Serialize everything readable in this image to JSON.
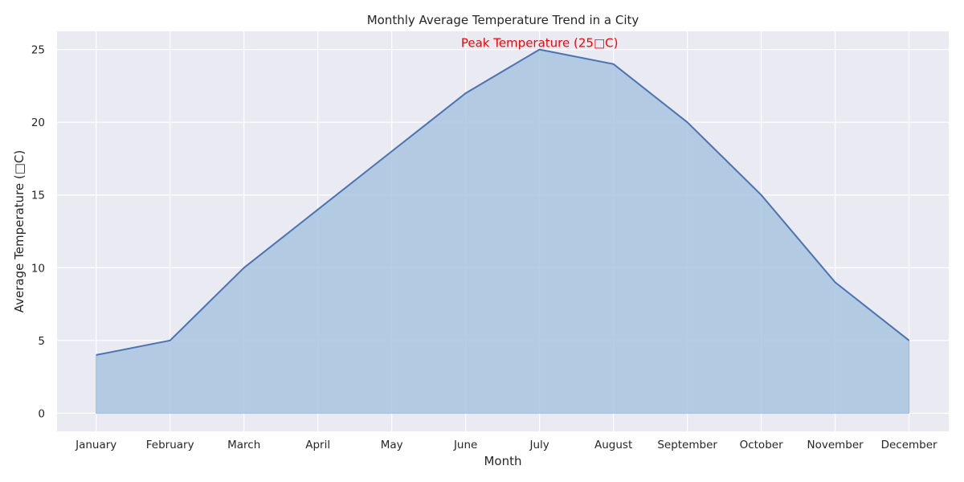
{
  "chart_data": {
    "type": "area",
    "title": "Monthly Average Temperature Trend in a City",
    "xlabel": "Month",
    "ylabel": "Average Temperature (□C)",
    "categories": [
      "January",
      "February",
      "March",
      "April",
      "May",
      "June",
      "July",
      "August",
      "September",
      "October",
      "November",
      "December"
    ],
    "values": [
      4,
      5,
      10,
      14,
      18,
      22,
      25,
      24,
      20,
      15,
      9,
      5
    ],
    "ylim": [
      -1.25,
      26.25
    ],
    "yticks": [
      0,
      5,
      10,
      15,
      20,
      25
    ],
    "grid": true,
    "legend": "none",
    "annotation": {
      "text": "Peak Temperature (25□C)",
      "x": "July",
      "y": 25,
      "color": "#ff0000"
    },
    "colors": {
      "background": "#eaeaf2",
      "grid": "#ffffff",
      "line": "#4c72b0",
      "fill": "#a9c4e0"
    }
  }
}
